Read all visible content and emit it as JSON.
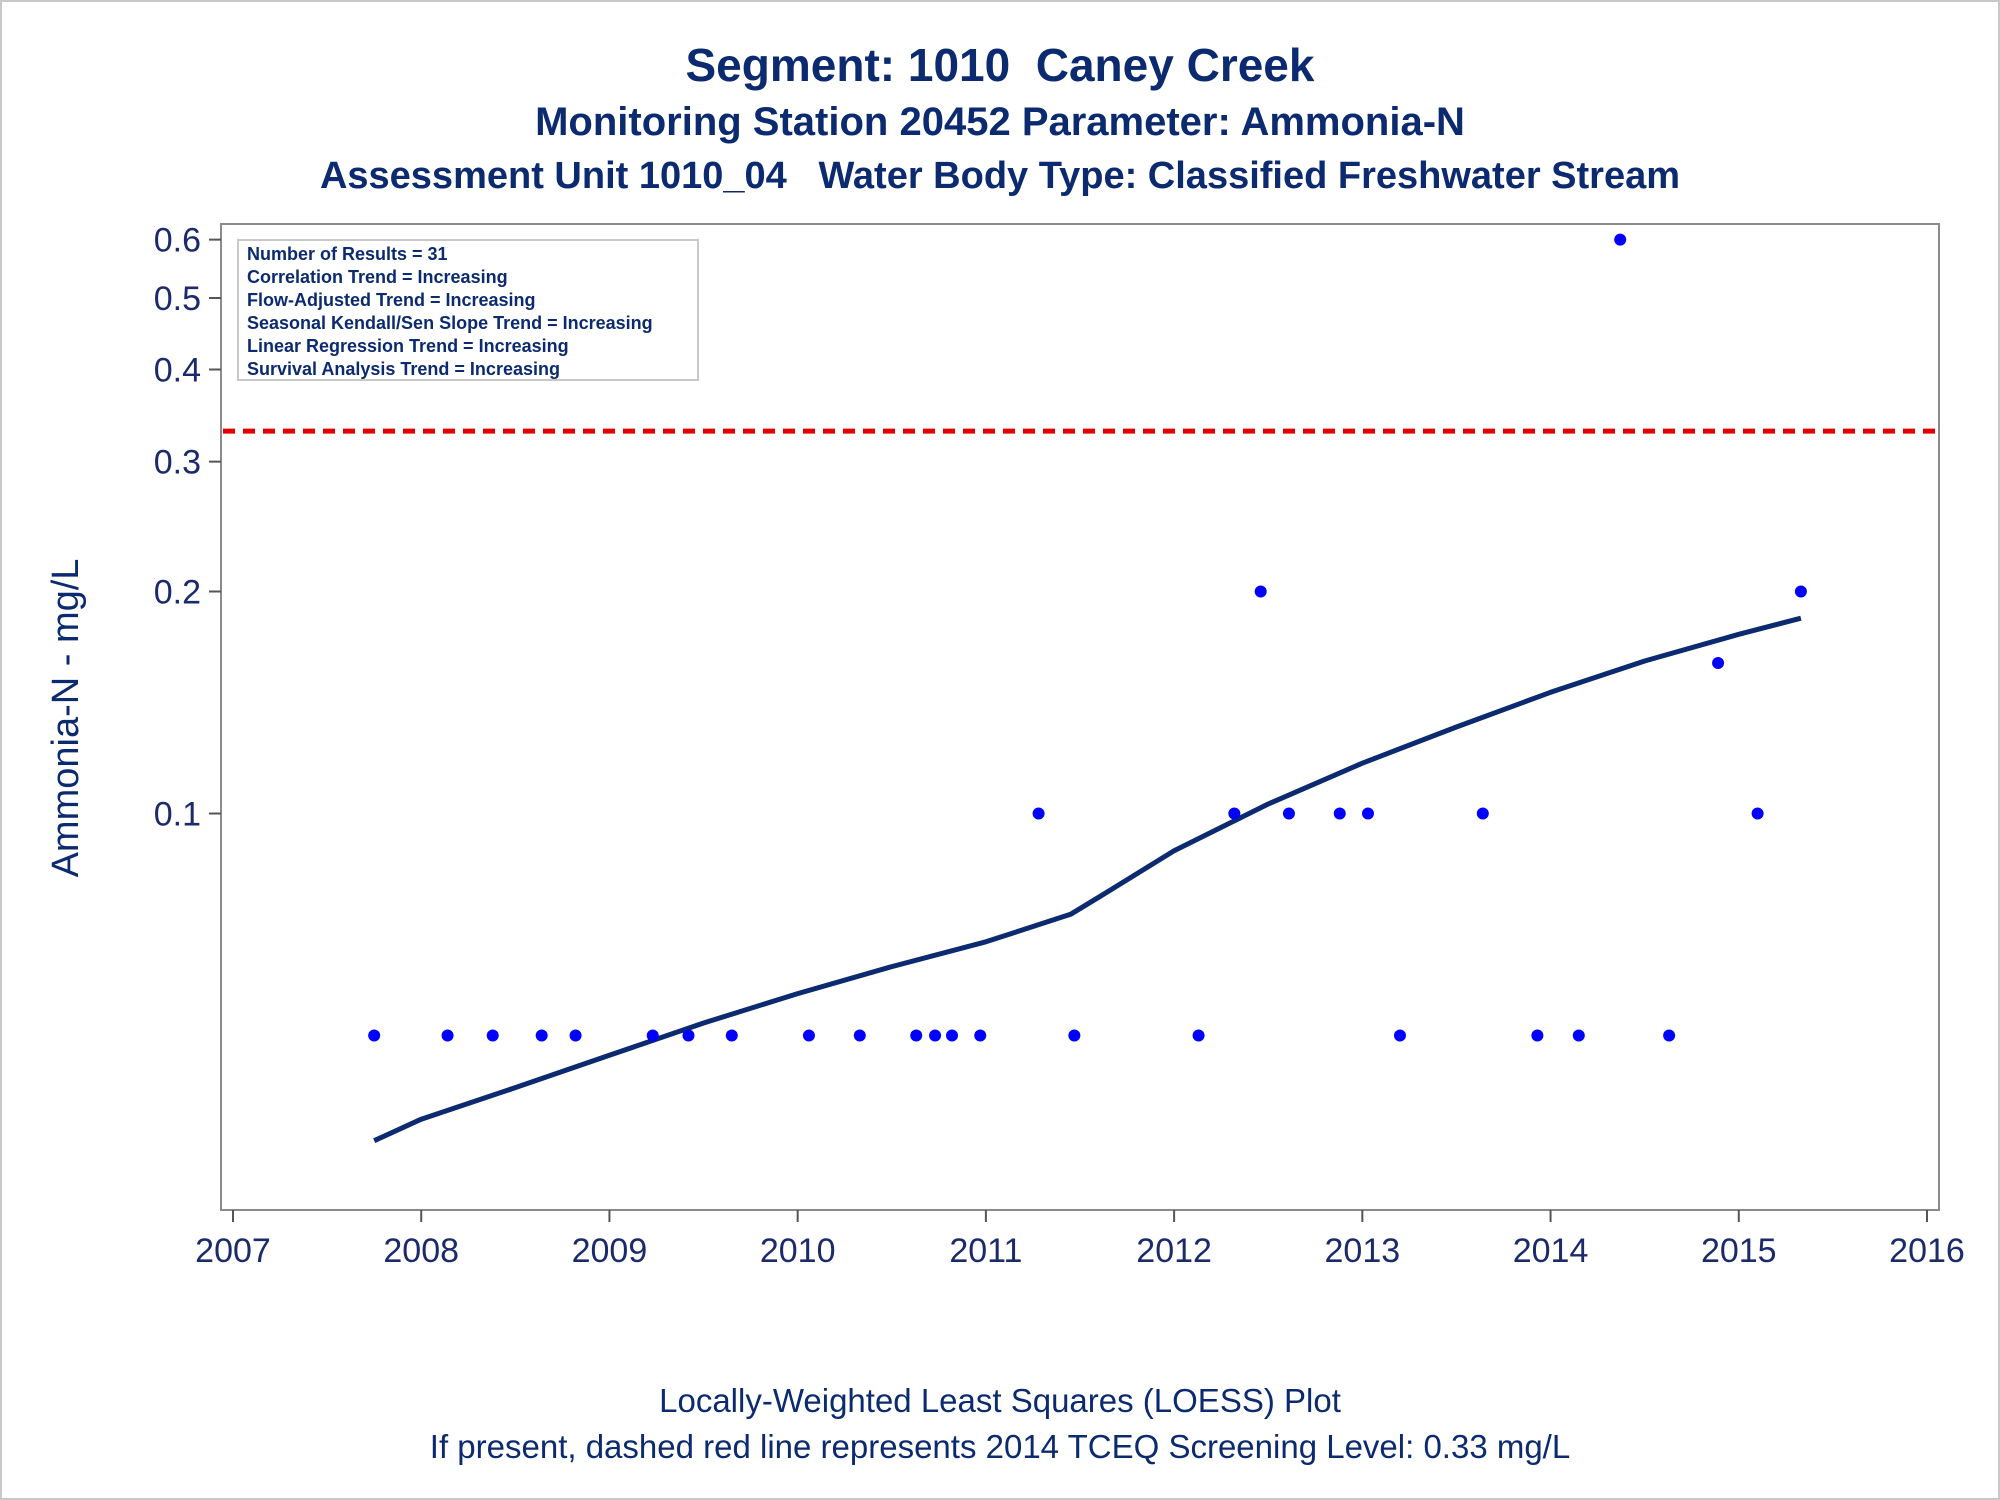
{
  "header": {
    "title": "Segment: 1010  Caney Creek",
    "subtitle1": "Monitoring Station 20452 Parameter: Ammonia-N",
    "subtitle2": "Assessment Unit 1010_04   Water Body Type: Classified Freshwater Stream"
  },
  "footer": {
    "line1": "Locally-Weighted Least Squares (LOESS) Plot",
    "line2": "If present, dashed red line represents 2014 TCEQ Screening Level: 0.33 mg/L"
  },
  "stats_box": {
    "lines": [
      "Number of Results = 31",
      "Correlation Trend = Increasing",
      "Flow-Adjusted Trend = Increasing",
      "Seasonal Kendall/Sen Slope Trend = Increasing",
      "Linear Regression Trend = Increasing",
      "Survival Analysis Trend = Increasing"
    ]
  },
  "colors": {
    "points": "#0000ff",
    "loess": "#0b2a6f",
    "screening_line": "#e00000",
    "text": "#0b2a6f"
  },
  "chart_data": {
    "type": "scatter",
    "xlabel": "",
    "ylabel": "Ammonia-N - mg/L",
    "x_scale": "linear (year)",
    "y_scale": "log",
    "xlim": [
      2007,
      2016
    ],
    "ylim": [
      0.029,
      0.63
    ],
    "x_ticks": [
      2007,
      2008,
      2009,
      2010,
      2011,
      2012,
      2013,
      2014,
      2015,
      2016
    ],
    "x_tick_labels": [
      "2007",
      "2008",
      "2009",
      "2010",
      "2011",
      "2012",
      "2013",
      "2014",
      "2015",
      "2016"
    ],
    "y_ticks": [
      0.1,
      0.2,
      0.3,
      0.4,
      0.5,
      0.6
    ],
    "y_tick_labels": [
      "0.1",
      "0.2",
      "0.3",
      "0.4",
      "0.5",
      "0.6"
    ],
    "grid": false,
    "screening_level": 0.33,
    "series": [
      {
        "type": "scatter",
        "points": [
          [
            2007.75,
            0.05
          ],
          [
            2008.14,
            0.05
          ],
          [
            2008.38,
            0.05
          ],
          [
            2008.64,
            0.05
          ],
          [
            2008.82,
            0.05
          ],
          [
            2009.23,
            0.05
          ],
          [
            2009.42,
            0.05
          ],
          [
            2009.65,
            0.05
          ],
          [
            2010.06,
            0.05
          ],
          [
            2010.33,
            0.05
          ],
          [
            2010.63,
            0.05
          ],
          [
            2010.73,
            0.05
          ],
          [
            2010.82,
            0.05
          ],
          [
            2010.97,
            0.05
          ],
          [
            2011.28,
            0.1
          ],
          [
            2011.47,
            0.05
          ],
          [
            2012.13,
            0.05
          ],
          [
            2012.32,
            0.1
          ],
          [
            2012.46,
            0.2
          ],
          [
            2012.61,
            0.1
          ],
          [
            2012.88,
            0.1
          ],
          [
            2013.03,
            0.1
          ],
          [
            2013.2,
            0.05
          ],
          [
            2013.64,
            0.1
          ],
          [
            2013.93,
            0.05
          ],
          [
            2014.15,
            0.05
          ],
          [
            2014.37,
            0.6
          ],
          [
            2014.63,
            0.05
          ],
          [
            2014.89,
            0.16
          ],
          [
            2015.1,
            0.1
          ],
          [
            2015.33,
            0.2
          ]
        ]
      },
      {
        "type": "line",
        "points": [
          [
            2007.75,
            0.036
          ],
          [
            2008.0,
            0.0385
          ],
          [
            2008.5,
            0.0425
          ],
          [
            2009.0,
            0.047
          ],
          [
            2009.5,
            0.052
          ],
          [
            2010.0,
            0.057
          ],
          [
            2010.5,
            0.062
          ],
          [
            2011.0,
            0.067
          ],
          [
            2011.45,
            0.073
          ],
          [
            2011.6,
            0.077
          ],
          [
            2012.0,
            0.089
          ],
          [
            2012.5,
            0.103
          ],
          [
            2013.0,
            0.117
          ],
          [
            2013.5,
            0.131
          ],
          [
            2014.0,
            0.146
          ],
          [
            2014.5,
            0.161
          ],
          [
            2015.0,
            0.175
          ],
          [
            2015.33,
            0.184
          ]
        ]
      }
    ]
  }
}
